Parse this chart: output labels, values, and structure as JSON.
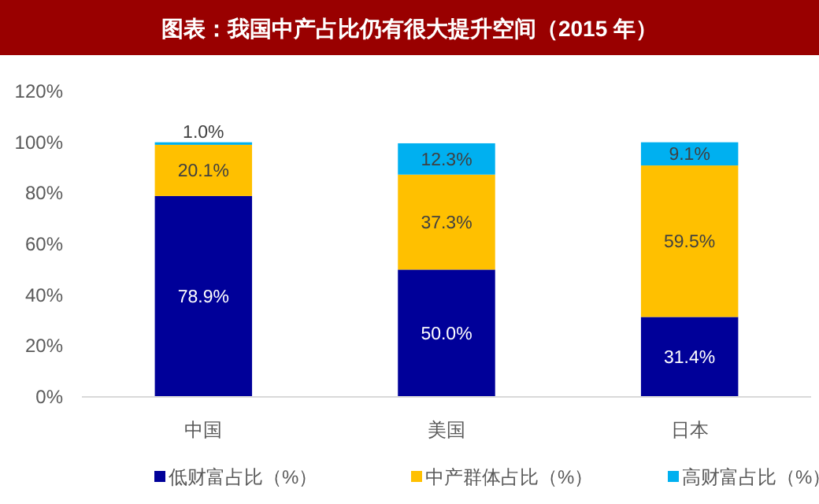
{
  "chart_data": {
    "type": "bar",
    "title": "图表：我国中产占比仍有很大提升空间（2015 年）",
    "categories": [
      "中国",
      "美国",
      "日本"
    ],
    "stacked": true,
    "series": [
      {
        "name": "低财富占比（%）",
        "color": "#000099",
        "values": [
          78.9,
          50.0,
          31.4
        ],
        "value_labels": [
          "78.9%",
          "50.0%",
          "31.4%"
        ]
      },
      {
        "name": "中产群体占比（%）",
        "color": "#ffc000",
        "values": [
          20.1,
          37.3,
          59.5
        ],
        "value_labels": [
          "20.1%",
          "37.3%",
          "59.5%"
        ]
      },
      {
        "name": "高财富占比（%）",
        "color": "#00b0f0",
        "values": [
          1.0,
          12.3,
          9.1
        ],
        "value_labels": [
          "1.0%",
          "12.3%",
          "9.1%"
        ]
      }
    ],
    "ylim": [
      0,
      120
    ],
    "yticks": [
      {
        "value": 0,
        "label": "0%"
      },
      {
        "value": 20,
        "label": "20%"
      },
      {
        "value": 40,
        "label": "40%"
      },
      {
        "value": 60,
        "label": "60%"
      },
      {
        "value": 80,
        "label": "80%"
      },
      {
        "value": 100,
        "label": "100%"
      },
      {
        "value": 120,
        "label": "120%"
      }
    ],
    "grid": false,
    "legend": "bottom"
  }
}
